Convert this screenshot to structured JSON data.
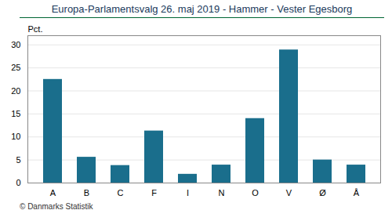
{
  "chart_data": {
    "type": "bar",
    "title": "Europa-Parlamentsvalg 26. maj 2019 - Hammer - Vester Egesborg",
    "ylabel": "Pct.",
    "caption": "© Danmarks Statistik",
    "categories": [
      "A",
      "B",
      "C",
      "F",
      "I",
      "N",
      "O",
      "V",
      "Ø",
      "Å"
    ],
    "values": [
      22.5,
      5.6,
      3.8,
      11.3,
      1.9,
      3.9,
      14.0,
      28.9,
      5.0,
      3.9
    ],
    "color": "#1a6e8c",
    "ylim": [
      0,
      32
    ],
    "yticks": [
      0,
      5,
      10,
      15,
      20,
      25,
      30
    ],
    "grid": true
  }
}
